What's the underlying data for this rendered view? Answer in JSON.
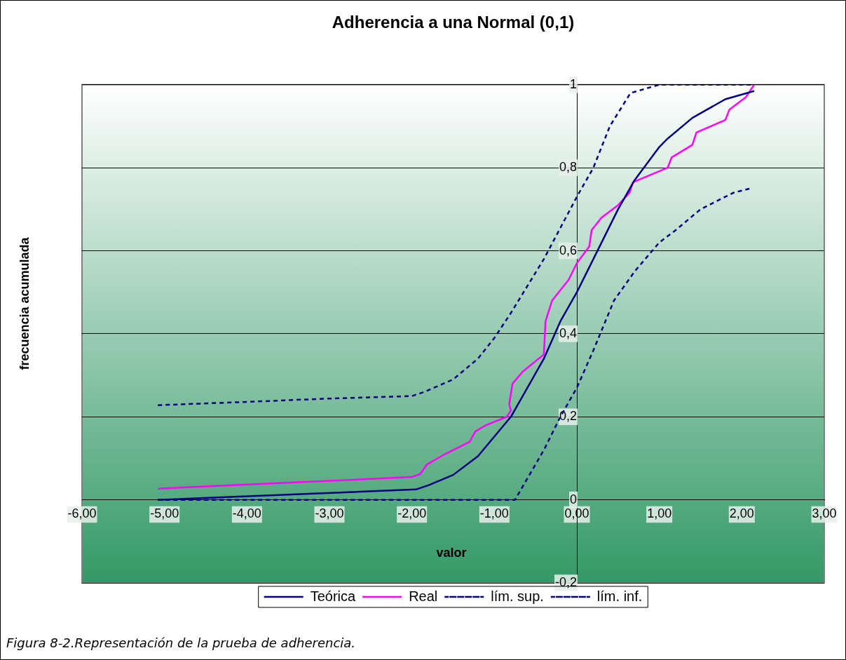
{
  "chart_data": {
    "type": "line",
    "title": "Adherencia a una Normal (0,1)",
    "xlabel": "valor",
    "ylabel": "frecuencia acumulada",
    "xlim": [
      -6,
      3
    ],
    "xticks": [
      {
        "value": -6,
        "label": "-6,00"
      },
      {
        "value": -5,
        "label": "-5,00"
      },
      {
        "value": -4,
        "label": "-4,00"
      },
      {
        "value": -3,
        "label": "-3,00"
      },
      {
        "value": -2,
        "label": "-2,00"
      },
      {
        "value": -1,
        "label": "-1,00"
      },
      {
        "value": 0,
        "label": "0,00"
      },
      {
        "value": 1,
        "label": "1,00"
      },
      {
        "value": 2,
        "label": "2,00"
      },
      {
        "value": 3,
        "label": "3,00"
      }
    ],
    "ylim": [
      -0.2,
      1
    ],
    "yticks": [
      {
        "value": -0.2,
        "label": "-0,2"
      },
      0,
      {
        "value": 0.2,
        "label": "0,2"
      },
      {
        "value": 0.4,
        "label": "0,4"
      },
      {
        "value": 0.6,
        "label": "0,6"
      },
      {
        "value": 0.8,
        "label": "0,8"
      },
      1
    ],
    "grid": "y",
    "legend": "bottom",
    "marker": "none",
    "series": [
      {
        "name": "Teórica",
        "color": "#000080",
        "line_style": "solid",
        "x": [
          -5.08,
          -1.95,
          -1.8,
          -1.5,
          -1.2,
          -0.8,
          -0.4,
          -0.2,
          0,
          0.2,
          0.5,
          0.7,
          1.0,
          1.1,
          1.4,
          1.8,
          2.15
        ],
        "values": [
          0,
          0.025,
          0.035,
          0.06,
          0.105,
          0.2,
          0.34,
          0.43,
          0.5,
          0.58,
          0.7,
          0.77,
          0.85,
          0.87,
          0.92,
          0.965,
          0.985
        ]
      },
      {
        "name": "Real",
        "color": "#ff00ff",
        "line_style": "solid",
        "x": [
          -5.08,
          -2,
          -1.9,
          -1.82,
          -1.6,
          -1.3,
          -1.23,
          -1.1,
          -0.85,
          -0.8,
          -0.82,
          -0.78,
          -0.65,
          -0.4,
          -0.38,
          -0.3,
          -0.1,
          0,
          0.15,
          0.18,
          0.3,
          0.5,
          0.64,
          0.68,
          1.1,
          1.15,
          1.4,
          1.45,
          1.8,
          1.85,
          2.05,
          2.15
        ],
        "values": [
          0.027,
          0.055,
          0.062,
          0.085,
          0.11,
          0.14,
          0.165,
          0.18,
          0.2,
          0.215,
          0.23,
          0.28,
          0.31,
          0.35,
          0.43,
          0.48,
          0.53,
          0.57,
          0.61,
          0.65,
          0.68,
          0.71,
          0.74,
          0.765,
          0.8,
          0.825,
          0.855,
          0.885,
          0.915,
          0.94,
          0.97,
          1
        ]
      },
      {
        "name": "lím. sup.",
        "color": "#000080",
        "line_style": "dashed",
        "x": [
          -5.08,
          -4,
          -3,
          -2,
          -1.85,
          -1.5,
          -1.2,
          -1,
          -0.8,
          -0.4,
          0,
          0.2,
          0.4,
          0.65,
          1,
          2.15
        ],
        "values": [
          0.228,
          0.236,
          0.244,
          0.25,
          0.26,
          0.29,
          0.34,
          0.39,
          0.45,
          0.58,
          0.73,
          0.8,
          0.9,
          0.98,
          1,
          1
        ]
      },
      {
        "name": "lím. inf.",
        "color": "#000080",
        "line_style": "dashed",
        "x": [
          -5.08,
          -0.75,
          -0.4,
          -0.2,
          0,
          0.2,
          0.45,
          0.7,
          1.0,
          1.2,
          1.5,
          1.9,
          2.1
        ],
        "values": [
          0,
          0,
          0.12,
          0.2,
          0.27,
          0.36,
          0.48,
          0.55,
          0.62,
          0.65,
          0.7,
          0.74,
          0.75
        ]
      }
    ],
    "annotations": [
      "Figura 8-2.Representación de la prueba de adherencia."
    ]
  }
}
